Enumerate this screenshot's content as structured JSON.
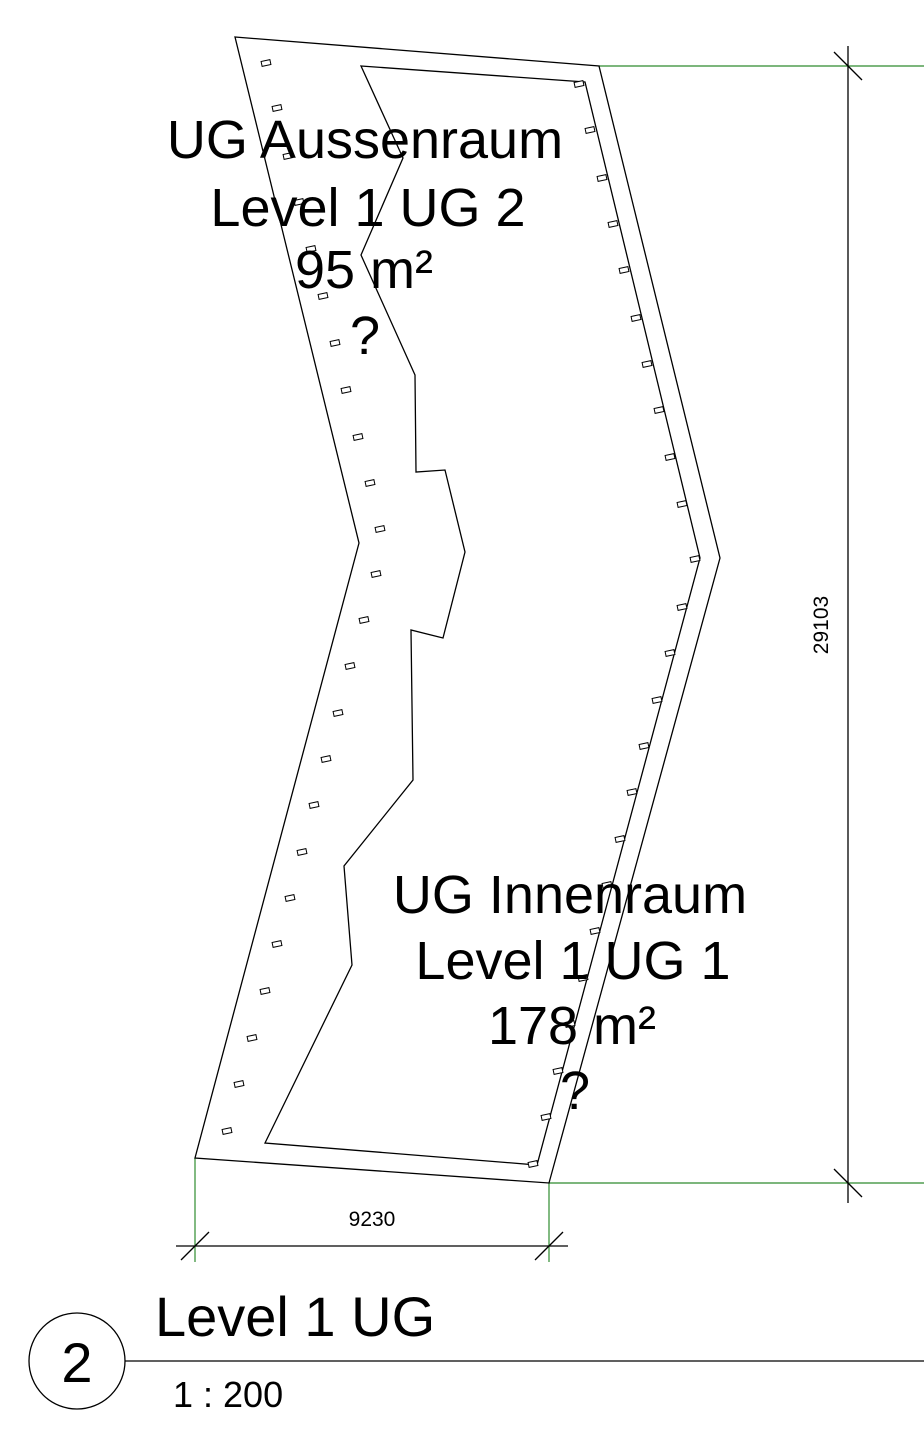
{
  "rooms": [
    {
      "name": "UG Aussenraum",
      "level": "Level 1 UG 2",
      "area": "95 m²",
      "number": "?"
    },
    {
      "name": "UG Innenraum",
      "level": "Level 1 UG 1",
      "area": "178 m²",
      "number": "?"
    }
  ],
  "dimensions": {
    "width": "9230",
    "height": "29103"
  },
  "view": {
    "number": "2",
    "title": "Level 1 UG",
    "scale": "1 : 200"
  },
  "colors": {
    "line": "#000000",
    "reference_line": "#2e8b2e",
    "background": "#ffffff"
  }
}
